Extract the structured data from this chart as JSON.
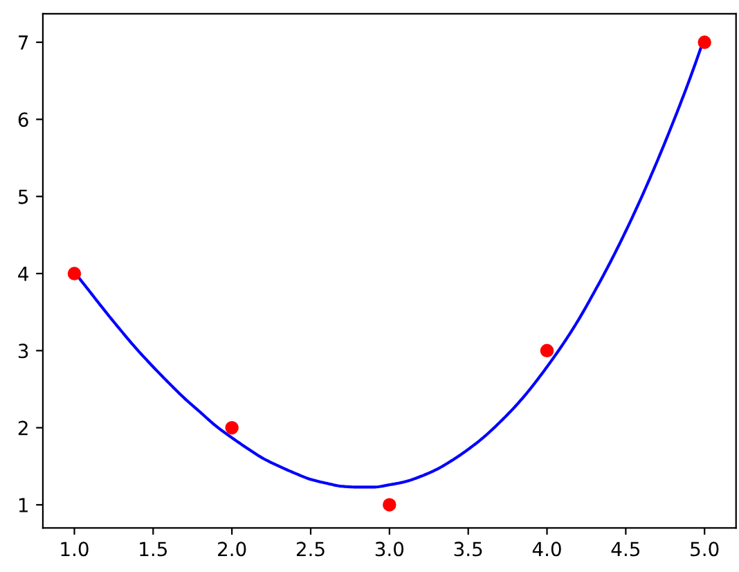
{
  "chart_data": {
    "type": "scatter",
    "series": [
      {
        "type": "line",
        "color": "#0000ff",
        "x": [
          1.0,
          1.1,
          1.2,
          1.3,
          1.4,
          1.5,
          1.6,
          1.7,
          1.8,
          1.9,
          2.0,
          2.1,
          2.2,
          2.3,
          2.4,
          2.5,
          2.6,
          2.7,
          2.8,
          2.9,
          3.0,
          3.1,
          3.2,
          3.3,
          3.4,
          3.5,
          3.6,
          3.7,
          3.8,
          3.9,
          4.0,
          4.1,
          4.2,
          4.3,
          4.4,
          4.5,
          4.6,
          4.7,
          4.8,
          4.9,
          5.0
        ],
        "values": [
          4.02,
          3.76,
          3.5,
          3.25,
          3.01,
          2.79,
          2.58,
          2.38,
          2.2,
          2.02,
          1.87,
          1.73,
          1.6,
          1.5,
          1.41,
          1.33,
          1.28,
          1.24,
          1.23,
          1.23,
          1.26,
          1.3,
          1.37,
          1.46,
          1.58,
          1.72,
          1.88,
          2.07,
          2.28,
          2.52,
          2.79,
          3.08,
          3.4,
          3.76,
          4.14,
          4.55,
          4.99,
          5.46,
          5.96,
          6.49,
          7.06
        ]
      },
      {
        "color": "#ff0000",
        "marker": "circle",
        "x": [
          1,
          2,
          3,
          4,
          5
        ],
        "values": [
          4,
          2,
          1,
          3,
          7
        ]
      }
    ],
    "xlim": [
      0.8,
      5.2
    ],
    "xticks": [
      {
        "value": 1,
        "label": "1.0"
      },
      {
        "value": 1.5,
        "label": "1.5"
      },
      {
        "value": 2,
        "label": "2.0"
      },
      {
        "value": 2.5,
        "label": "2.5"
      },
      {
        "value": 3,
        "label": "3.0"
      },
      {
        "value": 3.5,
        "label": "3.5"
      },
      {
        "value": 4,
        "label": "4.0"
      },
      {
        "value": 4.5,
        "label": "4.5"
      },
      {
        "value": 5,
        "label": "5.0"
      }
    ],
    "ylim": [
      0.7,
      7.37
    ],
    "yticks": [
      1,
      2,
      3,
      4,
      5,
      6,
      7
    ],
    "grid": false,
    "legend": false
  }
}
